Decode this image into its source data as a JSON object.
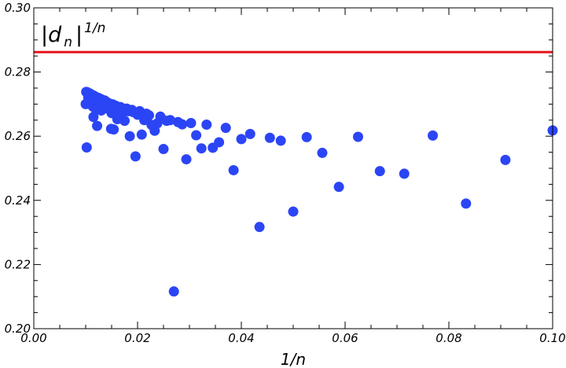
{
  "chart_data": {
    "type": "scatter",
    "xlabel": "1/n",
    "ylabel": "",
    "xlim": [
      0.0,
      0.1
    ],
    "ylim": [
      0.2,
      0.3
    ],
    "xticks": [
      "0.00",
      "0.02",
      "0.04",
      "0.06",
      "0.08",
      "0.10"
    ],
    "yticks": [
      "0.20",
      "0.22",
      "0.24",
      "0.26",
      "0.28",
      "0.30"
    ],
    "annotation": {
      "main": "|d",
      "sub": "n",
      "bar": "|",
      "sup": "1/n"
    },
    "grid": false,
    "reference_line": {
      "y": 0.2862,
      "color": "#e8141c"
    },
    "marker_color": "#2b45f5",
    "series": [
      {
        "points": [
          [
            0.1,
            0.2618
          ],
          [
            0.0909,
            0.2526
          ],
          [
            0.0833,
            0.239
          ],
          [
            0.0769,
            0.2602
          ],
          [
            0.0714,
            0.2483
          ],
          [
            0.0667,
            0.2491
          ],
          [
            0.0625,
            0.2598
          ],
          [
            0.0588,
            0.2442
          ],
          [
            0.0556,
            0.2548
          ],
          [
            0.0526,
            0.2597
          ],
          [
            0.05,
            0.2365
          ],
          [
            0.0476,
            0.2586
          ],
          [
            0.0455,
            0.2595
          ],
          [
            0.0435,
            0.2317
          ],
          [
            0.0417,
            0.2607
          ],
          [
            0.04,
            0.2591
          ],
          [
            0.0385,
            0.2494
          ],
          [
            0.037,
            0.2626
          ],
          [
            0.0357,
            0.2581
          ],
          [
            0.0345,
            0.2564
          ],
          [
            0.0333,
            0.2636
          ],
          [
            0.0323,
            0.2562
          ],
          [
            0.0313,
            0.2603
          ],
          [
            0.0303,
            0.2641
          ],
          [
            0.0294,
            0.2528
          ],
          [
            0.0286,
            0.2637
          ],
          [
            0.0278,
            0.2644
          ],
          [
            0.027,
            0.2116
          ],
          [
            0.0263,
            0.265
          ],
          [
            0.0256,
            0.2648
          ],
          [
            0.025,
            0.256
          ],
          [
            0.0244,
            0.2661
          ],
          [
            0.0238,
            0.264
          ],
          [
            0.0233,
            0.2617
          ],
          [
            0.0227,
            0.2635
          ],
          [
            0.0222,
            0.2665
          ],
          [
            0.0217,
            0.267
          ],
          [
            0.0213,
            0.265
          ],
          [
            0.0208,
            0.2605
          ],
          [
            0.0204,
            0.2678
          ],
          [
            0.02,
            0.2667
          ],
          [
            0.0196,
            0.2537
          ],
          [
            0.0192,
            0.2675
          ],
          [
            0.0189,
            0.2682
          ],
          [
            0.0185,
            0.26
          ],
          [
            0.0182,
            0.2678
          ],
          [
            0.0179,
            0.2686
          ],
          [
            0.0175,
            0.2648
          ],
          [
            0.0172,
            0.2686
          ],
          [
            0.0169,
            0.267
          ],
          [
            0.0167,
            0.2691
          ],
          [
            0.0164,
            0.2682
          ],
          [
            0.0161,
            0.2653
          ],
          [
            0.0159,
            0.2694
          ],
          [
            0.0156,
            0.2696
          ],
          [
            0.0154,
            0.2621
          ],
          [
            0.0152,
            0.2699
          ],
          [
            0.0149,
            0.2623
          ],
          [
            0.0147,
            0.2701
          ],
          [
            0.0145,
            0.2684
          ],
          [
            0.0143,
            0.2704
          ],
          [
            0.0141,
            0.2706
          ],
          [
            0.0139,
            0.2703
          ],
          [
            0.0137,
            0.2711
          ],
          [
            0.0135,
            0.2709
          ],
          [
            0.0133,
            0.2713
          ],
          [
            0.0132,
            0.2694
          ],
          [
            0.013,
            0.2715
          ],
          [
            0.0128,
            0.2703
          ],
          [
            0.0127,
            0.2717
          ],
          [
            0.0125,
            0.2719
          ],
          [
            0.0123,
            0.2715
          ],
          [
            0.0122,
            0.2632
          ],
          [
            0.012,
            0.2722
          ],
          [
            0.0119,
            0.27
          ],
          [
            0.0118,
            0.2723
          ],
          [
            0.0116,
            0.2725
          ],
          [
            0.0115,
            0.2727
          ],
          [
            0.0114,
            0.2692
          ],
          [
            0.0112,
            0.2728
          ],
          [
            0.0111,
            0.2729
          ],
          [
            0.011,
            0.2731
          ],
          [
            0.0109,
            0.2715
          ],
          [
            0.0108,
            0.2733
          ],
          [
            0.0106,
            0.2734
          ],
          [
            0.0105,
            0.272
          ],
          [
            0.0104,
            0.2736
          ],
          [
            0.0103,
            0.2737
          ],
          [
            0.0102,
            0.2565
          ],
          [
            0.0101,
            0.2738
          ],
          [
            0.01,
            0.27
          ],
          [
            0.0115,
            0.266
          ],
          [
            0.012,
            0.2683
          ],
          [
            0.013,
            0.268
          ],
          [
            0.014,
            0.269
          ],
          [
            0.015,
            0.2672
          ]
        ]
      }
    ]
  }
}
